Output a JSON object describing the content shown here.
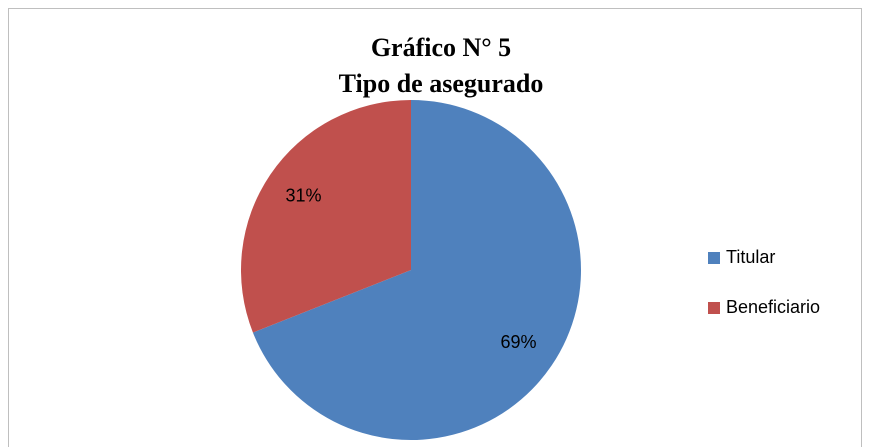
{
  "chart_data": {
    "type": "pie",
    "title": "Gráfico N° 5",
    "subtitle": "Tipo de asegurado",
    "categories": [
      "Titular",
      "Beneficiario"
    ],
    "values": [
      69,
      31
    ],
    "value_labels": [
      "69%",
      "31%"
    ],
    "colors": [
      "#4f81bd",
      "#c0504d"
    ],
    "legend": "right"
  }
}
